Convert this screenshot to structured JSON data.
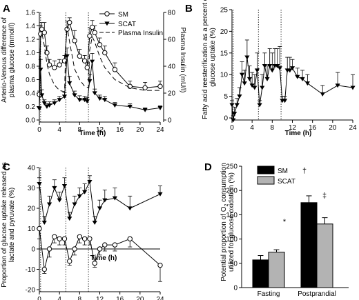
{
  "chart_data": [
    {
      "panel": "A",
      "type": "line",
      "ylabel": "Arterio-Venous difference of plasma glucose (mmol/l)",
      "y2label": "Plasma Insulin (mU/l)",
      "xlabel": "Time (h)",
      "xlim": [
        0,
        24
      ],
      "ylim": [
        0,
        1.6
      ],
      "y2lim": [
        0,
        80
      ],
      "xticks": [
        0,
        4,
        8,
        12,
        16,
        20,
        24
      ],
      "yticks": [
        "0.0",
        "0.2",
        "0.4",
        "0.6",
        "0.8",
        "1.0",
        "1.2",
        "1.4",
        "1.6"
      ],
      "y2ticks": [
        0,
        20,
        40,
        60,
        80
      ],
      "meal_lines": [
        0.25,
        5.25,
        9.75
      ],
      "legend": [
        "SM",
        "SCAT",
        "Plasma Insulin"
      ],
      "series": [
        {
          "name": "SM",
          "marker": "circle",
          "x": [
            0,
            0.25,
            0.5,
            1,
            1.5,
            2,
            3,
            4,
            5,
            5.5,
            6,
            7,
            8,
            9,
            9.5,
            10,
            10.5,
            11,
            12,
            13,
            15,
            18,
            21,
            24
          ],
          "y": [
            0.38,
            1.28,
            1.35,
            1.3,
            1.0,
            0.82,
            0.78,
            0.82,
            0.88,
            1.35,
            1.45,
            1.18,
            0.95,
            0.88,
            0.78,
            1.25,
            1.38,
            1.3,
            1.12,
            1.0,
            0.75,
            0.5,
            0.48,
            0.5
          ],
          "err": [
            0.05,
            0.12,
            0.1,
            0.15,
            0.1,
            0.08,
            0.1,
            0.08,
            0.08,
            0.12,
            0.07,
            0.15,
            0.1,
            0.08,
            0.08,
            0.12,
            0.1,
            0.1,
            0.1,
            0.1,
            0.1,
            0.08,
            0.08,
            0.08
          ]
        },
        {
          "name": "SCAT",
          "marker": "triangle-down",
          "x": [
            0,
            0.25,
            0.5,
            1,
            1.5,
            2,
            3,
            4,
            5,
            5.5,
            6,
            7,
            8,
            9,
            9.5,
            10,
            10.5,
            11,
            12,
            13,
            15,
            18,
            21,
            24
          ],
          "y": [
            0.17,
            0.75,
            0.37,
            0.25,
            0.2,
            0.22,
            0.25,
            0.3,
            0.35,
            0.95,
            0.55,
            0.37,
            0.3,
            0.3,
            0.28,
            0.58,
            0.87,
            0.4,
            0.32,
            0.3,
            0.22,
            0.2,
            0.15,
            0.18
          ],
          "err": [
            0.03,
            0.15,
            0.08,
            0.05,
            0.04,
            0.05,
            0.05,
            0.05,
            0.06,
            0.12,
            0.1,
            0.06,
            0.06,
            0.05,
            0.05,
            0.1,
            0.12,
            0.06,
            0.05,
            0.05,
            0.04,
            0.04,
            0.03,
            0.03
          ]
        },
        {
          "name": "Plasma Insulin",
          "style": "dashed",
          "axis": "right",
          "x": [
            0,
            0.25,
            0.5,
            1,
            1.5,
            2,
            3,
            4,
            5,
            5.25,
            5.5,
            6,
            7,
            8,
            9,
            9.75,
            10,
            10.5,
            11,
            12,
            13,
            15,
            18,
            21,
            24
          ],
          "y": [
            27,
            60,
            65,
            55,
            42,
            34,
            26,
            22,
            21,
            55,
            70,
            58,
            38,
            30,
            25,
            24,
            52,
            62,
            58,
            47,
            39,
            30,
            24,
            22,
            22
          ]
        }
      ]
    },
    {
      "panel": "B",
      "type": "line",
      "ylabel": "Fatty acid reesterification as a percent of glucose uptake (%)",
      "xlabel": "Time (h)",
      "xlim": [
        0,
        24
      ],
      "ylim": [
        0,
        25
      ],
      "xticks": [
        0,
        4,
        8,
        12,
        16,
        20,
        24
      ],
      "yticks": [
        0,
        5,
        10,
        15,
        20,
        25
      ],
      "meal_lines": [
        0.25,
        5.25,
        9.75
      ],
      "series": [
        {
          "name": "",
          "marker": "triangle-down",
          "x": [
            0,
            0.25,
            0.5,
            1,
            1.5,
            2,
            2.5,
            3,
            3.5,
            4,
            4.5,
            5,
            5.5,
            6,
            6.5,
            7,
            7.5,
            8,
            8.5,
            9,
            9.5,
            10,
            10.5,
            11,
            11.5,
            12,
            13,
            14,
            15,
            18,
            21,
            24
          ],
          "y": [
            3,
            -0.5,
            1,
            3,
            5,
            10,
            8,
            14,
            9,
            7.5,
            7,
            11,
            3,
            7,
            12,
            9,
            12,
            11,
            12,
            12,
            11.5,
            4,
            4,
            11,
            11,
            11.5,
            9.5,
            9,
            8,
            5.5,
            7.5,
            7
          ],
          "err": [
            1,
            1,
            1.5,
            1.5,
            2,
            3,
            3,
            4,
            3,
            3,
            3,
            4,
            1,
            3,
            3,
            3,
            4,
            4,
            4,
            4,
            5,
            1,
            1,
            3,
            3,
            2,
            2,
            2,
            2,
            2,
            3,
            3
          ]
        }
      ]
    },
    {
      "panel": "C",
      "type": "line",
      "ylabel": "Proportion of glucose uptake released as lactate and pyruvate (%)",
      "xlabel": "Time (h)",
      "xlim": [
        0,
        24
      ],
      "ylim": [
        -20,
        40
      ],
      "xticks": [
        0,
        4,
        8,
        12,
        16,
        20,
        24
      ],
      "yticks": [
        -20,
        -10,
        0,
        10,
        20,
        30,
        40
      ],
      "meal_lines": [
        0.25,
        5.25,
        9.75
      ],
      "series": [
        {
          "name": "SM",
          "marker": "circle",
          "x": [
            0,
            1,
            2,
            3,
            4,
            5,
            6,
            7,
            8,
            9,
            10,
            11,
            12,
            13,
            15,
            18,
            24
          ],
          "y": [
            10,
            -10,
            0,
            6,
            5,
            5,
            -6,
            0,
            6,
            5,
            5,
            -7,
            0,
            2,
            2,
            5,
            -8
          ],
          "err": [
            5,
            2,
            4,
            3,
            3,
            3,
            2,
            3,
            3,
            3,
            3,
            2,
            3,
            3,
            3,
            4,
            8
          ]
        },
        {
          "name": "SCAT",
          "marker": "triangle-down",
          "x": [
            0,
            1,
            2,
            3,
            4,
            5,
            6,
            7,
            8,
            9,
            10,
            11,
            12,
            13,
            15,
            18,
            24
          ],
          "y": [
            32,
            13,
            22,
            30,
            24,
            31,
            15,
            22,
            26,
            28,
            33,
            13,
            20,
            24,
            25,
            20,
            27
          ],
          "err": [
            3,
            3,
            4,
            4,
            4,
            4,
            3,
            4,
            4,
            4,
            3,
            3,
            4,
            5,
            5,
            6,
            4
          ]
        }
      ]
    },
    {
      "panel": "D",
      "type": "bar",
      "ylabel": "Potential proportion of O2 consumption utilized for glucose oxidation (%)",
      "ylim": [
        0,
        250
      ],
      "yticks": [
        0,
        50,
        100,
        150,
        200,
        250
      ],
      "categories": [
        "Fasting",
        "Postprandial"
      ],
      "legend": [
        "SM",
        "SCAT"
      ],
      "series": [
        {
          "name": "SM",
          "color": "#000000",
          "values": [
            57,
            175
          ],
          "err": [
            9,
            14
          ]
        },
        {
          "name": "SCAT",
          "color": "#b3b3b3",
          "values": [
            73,
            131
          ],
          "err": [
            5,
            13
          ]
        }
      ],
      "annotations": [
        {
          "category": "Fasting",
          "series": "SCAT",
          "text": "*"
        },
        {
          "category": "Postprandial",
          "series": "SM",
          "text": "†"
        },
        {
          "category": "Postprandial",
          "series": "SCAT",
          "text": "‡"
        }
      ]
    }
  ],
  "labels": {
    "a": {
      "letter": "A",
      "ylab1": "Arterio-Venous difference of",
      "ylab2": "plasma glucose (mmol/l)",
      "y2lab": "Plasma Insulin (mU/l)",
      "xlab": "Time (h)",
      "leg_sm": "SM",
      "leg_scat": "SCAT",
      "leg_ins": "Plasma Insulin"
    },
    "b": {
      "letter": "B",
      "ylab1": "Fatty acid reesterification as a percent of",
      "ylab2": "glucose uptake (%)",
      "xlab": "Time (h)"
    },
    "c": {
      "letter": "C",
      "ylab1": "Proportion of glucose uptake released as",
      "ylab2": "lactate and pyruvate (%)",
      "xlab": "Time (h)"
    },
    "d": {
      "letter": "D",
      "ylab1a": "Potential proportion of O",
      "ylab1sub": "2",
      "ylab1b": " consumption",
      "ylab2": "utilized for glucose oxidation (%)",
      "cat0": "Fasting",
      "cat1": "Postprandial",
      "leg_sm": "SM",
      "leg_scat": "SCAT",
      "ann0": "*",
      "ann1": "†",
      "ann2": "‡"
    }
  }
}
